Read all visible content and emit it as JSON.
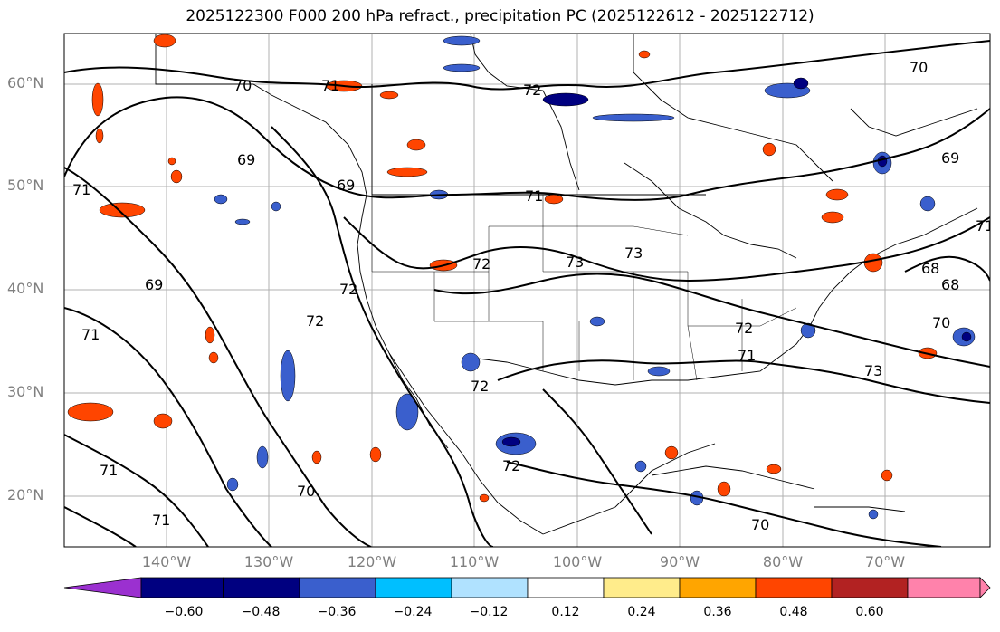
{
  "title": "2025122300 F000 200 hPa refract., precipitation PC (2025122612 - 2025122712)",
  "lat_labels": [
    "60°N",
    "50°N",
    "40°N",
    "30°N",
    "20°N"
  ],
  "lon_labels": [
    "140°W",
    "130°W",
    "120°W",
    "110°W",
    "100°W",
    "90°W",
    "80°W",
    "70°W"
  ],
  "contour_labels": [
    "70",
    "71",
    "72",
    "69",
    "69",
    "71",
    "71",
    "72",
    "73",
    "72",
    "72",
    "73",
    "71",
    "72",
    "69",
    "71",
    "72",
    "70",
    "72",
    "68",
    "68",
    "70",
    "71",
    "73",
    "71",
    "71",
    "70",
    "70",
    "69"
  ],
  "colorbar": {
    "ticks": [
      "−0.60",
      "−0.48",
      "−0.36",
      "−0.24",
      "−0.12",
      "0.12",
      "0.24",
      "0.36",
      "0.48",
      "0.60"
    ],
    "colors": [
      "#9b30d0",
      "#000080",
      "#3a5fcd",
      "#00bfff",
      "#b0e2ff",
      "#ffffff",
      "#ffec8b",
      "#ffa500",
      "#ff4500",
      "#b22222",
      "#ff82ab"
    ]
  }
}
